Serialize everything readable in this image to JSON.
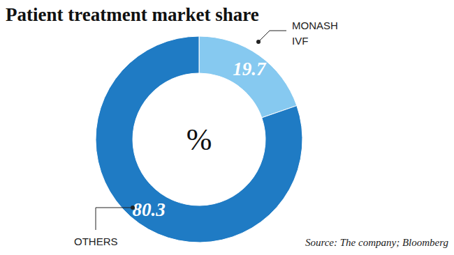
{
  "chart_data": {
    "type": "pie",
    "title": "Patient treatment market share",
    "categories": [
      "MONASH IVF",
      "OTHERS"
    ],
    "values": [
      19.7,
      80.3
    ],
    "colors": [
      "#86c9f0",
      "#1f7bc4"
    ],
    "data_labels": true,
    "annotations": [
      "%"
    ],
    "source": "Source: The company; Bloomberg"
  }
}
